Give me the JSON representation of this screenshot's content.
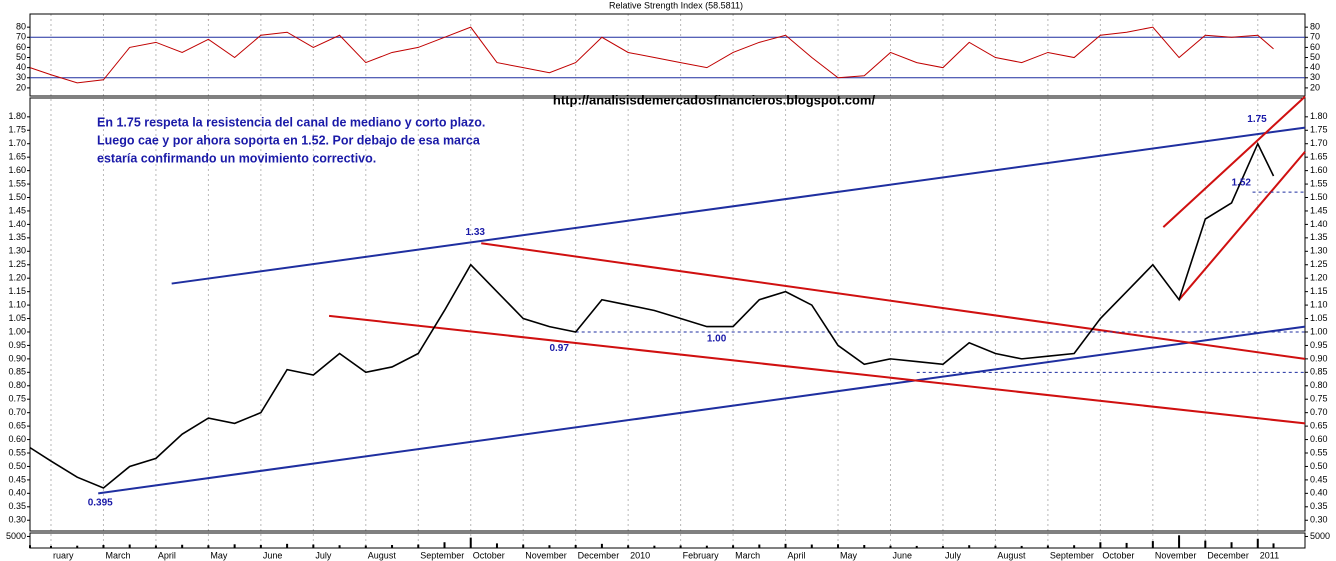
{
  "url": "http://analisisdemercadosfinancieros.blogspot.com/",
  "chart_data": [
    {
      "type": "line",
      "title": "Relative Strength Index (58.5811)",
      "color": "#c00000",
      "x": [
        0.6,
        1.0,
        1.5,
        2.0,
        2.5,
        3.0,
        3.5,
        4.0,
        4.5,
        5.0,
        5.5,
        6.0,
        6.5,
        7.0,
        7.5,
        8.0,
        8.5,
        9.0,
        9.5,
        10.0,
        10.5,
        11.0,
        11.5,
        12.0,
        12.5,
        13.0,
        13.5,
        14.0,
        14.5,
        15.0,
        15.5,
        16.0,
        16.5,
        17.0,
        17.5,
        18.0,
        18.5,
        19.0,
        19.5,
        20.0,
        20.5,
        21.0,
        21.5,
        22.0,
        22.5,
        23.0,
        23.5,
        24.0,
        24.3
      ],
      "values": [
        40,
        33,
        25,
        28,
        60,
        65,
        55,
        68,
        50,
        72,
        75,
        60,
        72,
        45,
        55,
        60,
        70,
        80,
        45,
        40,
        35,
        45,
        70,
        55,
        50,
        45,
        40,
        55,
        65,
        72,
        50,
        30,
        32,
        55,
        45,
        40,
        65,
        50,
        45,
        55,
        50,
        72,
        75,
        80,
        50,
        72,
        70,
        72,
        58.5811
      ],
      "xlim": [
        0.6,
        24.9
      ],
      "ylim": [
        12,
        93
      ],
      "yticks": [
        20,
        30,
        40,
        50,
        60,
        70,
        80
      ],
      "hlines": [
        70,
        30
      ],
      "hline_color": "#1f2f9f"
    },
    {
      "type": "line",
      "color": "#000000",
      "notes": [
        "En 1.75 respeta la resistencia del canal de mediano y corto plazo.",
        "Luego cae y por ahora soporta en 1.52. Por debajo de esa marca",
        "estaría confirmando un movimiento correctivo."
      ],
      "x": [
        0.6,
        1.0,
        1.5,
        2.0,
        2.5,
        3.0,
        3.5,
        4.0,
        4.5,
        5.0,
        5.5,
        6.0,
        6.5,
        7.0,
        7.5,
        8.0,
        8.5,
        9.0,
        9.5,
        10.0,
        10.5,
        11.0,
        11.5,
        12.0,
        12.5,
        13.0,
        13.5,
        14.0,
        14.5,
        15.0,
        15.5,
        16.0,
        16.5,
        17.0,
        17.5,
        18.0,
        18.5,
        19.0,
        19.5,
        20.0,
        20.5,
        21.0,
        21.5,
        22.0,
        22.5,
        23.0,
        23.5,
        24.0,
        24.3
      ],
      "values": [
        0.57,
        0.52,
        0.46,
        0.42,
        0.5,
        0.53,
        0.62,
        0.68,
        0.66,
        0.7,
        0.86,
        0.84,
        0.92,
        0.85,
        0.87,
        0.92,
        1.08,
        1.25,
        1.15,
        1.05,
        1.02,
        1.0,
        1.12,
        1.1,
        1.08,
        1.05,
        1.02,
        1.02,
        1.12,
        1.15,
        1.1,
        0.95,
        0.88,
        0.9,
        0.89,
        0.88,
        0.96,
        0.92,
        0.9,
        0.91,
        0.92,
        1.05,
        1.15,
        1.25,
        1.12,
        1.42,
        1.48,
        1.7,
        1.58
      ],
      "xlim": [
        0.6,
        24.9
      ],
      "ylim": [
        0.26,
        1.87
      ],
      "yticks": [
        {
          "value": 0.3,
          "label": "0.30"
        },
        {
          "value": 0.35,
          "label": "0.35"
        },
        {
          "value": 0.4,
          "label": "0.40"
        },
        {
          "value": 0.45,
          "label": "0.45"
        },
        {
          "value": 0.5,
          "label": "0.50"
        },
        {
          "value": 0.55,
          "label": "0.55"
        },
        {
          "value": 0.6,
          "label": "0.60"
        },
        {
          "value": 0.65,
          "label": "0.65"
        },
        {
          "value": 0.7,
          "label": "0.70"
        },
        {
          "value": 0.75,
          "label": "0.75"
        },
        {
          "value": 0.8,
          "label": "0.80"
        },
        {
          "value": 0.85,
          "label": "0.85"
        },
        {
          "value": 0.9,
          "label": "0.90"
        },
        {
          "value": 0.95,
          "label": "0.95"
        },
        {
          "value": 1.0,
          "label": "1.00"
        },
        {
          "value": 1.05,
          "label": "1.05"
        },
        {
          "value": 1.1,
          "label": "1.10"
        },
        {
          "value": 1.15,
          "label": "1.15"
        },
        {
          "value": 1.2,
          "label": "1.20"
        },
        {
          "value": 1.25,
          "label": "1.25"
        },
        {
          "value": 1.3,
          "label": "1.30"
        },
        {
          "value": 1.35,
          "label": "1.35"
        },
        {
          "value": 1.4,
          "label": "1.40"
        },
        {
          "value": 1.45,
          "label": "1.45"
        },
        {
          "value": 1.5,
          "label": "1.50"
        },
        {
          "value": 1.55,
          "label": "1.55"
        },
        {
          "value": 1.6,
          "label": "1.60"
        },
        {
          "value": 1.65,
          "label": "1.65"
        },
        {
          "value": 1.7,
          "label": "1.70"
        },
        {
          "value": 1.75,
          "label": "1.75"
        },
        {
          "value": 1.8,
          "label": "1.80"
        }
      ],
      "lines": [
        {
          "color": "#1f2fa0",
          "dashed": false,
          "points": [
            [
              3.3,
              1.18
            ],
            [
              24.9,
              1.76
            ]
          ]
        },
        {
          "color": "#1f2fa0",
          "dashed": false,
          "points": [
            [
              1.9,
              0.4
            ],
            [
              24.9,
              1.02
            ]
          ]
        },
        {
          "color": "#d01010",
          "dashed": false,
          "points": [
            [
              9.2,
              1.33
            ],
            [
              24.9,
              0.9
            ]
          ]
        },
        {
          "color": "#d01010",
          "dashed": false,
          "points": [
            [
              6.3,
              1.06
            ],
            [
              24.9,
              0.66
            ]
          ]
        },
        {
          "color": "#d01010",
          "dashed": false,
          "points": [
            [
              22.5,
              1.12
            ],
            [
              24.9,
              1.67
            ]
          ]
        },
        {
          "color": "#d01010",
          "dashed": false,
          "points": [
            [
              22.2,
              1.39
            ],
            [
              24.9,
              1.875
            ]
          ]
        },
        {
          "color": "#1f2fa0",
          "dashed": true,
          "points": [
            [
              11.0,
              1.0
            ],
            [
              24.9,
              1.0
            ]
          ]
        },
        {
          "color": "#1f2fa0",
          "dashed": true,
          "points": [
            [
              23.9,
              1.52
            ],
            [
              24.9,
              1.52
            ]
          ]
        },
        {
          "color": "#1f2fa0",
          "dashed": true,
          "points": [
            [
              17.5,
              0.85
            ],
            [
              24.9,
              0.85
            ]
          ]
        }
      ],
      "annotations": [
        {
          "text": "1.33",
          "x": 8.9,
          "y": 1.37
        },
        {
          "text": "0.97",
          "x": 10.5,
          "y": 0.94
        },
        {
          "text": "1.00",
          "x": 13.5,
          "y": 0.975
        },
        {
          "text": "0.395",
          "x": 1.7,
          "y": 0.365
        },
        {
          "text": "1.75",
          "x": 23.8,
          "y": 1.79
        },
        {
          "text": "1.52",
          "x": 23.5,
          "y": 1.555
        }
      ]
    },
    {
      "type": "bar",
      "color": "#000000",
      "x": [
        0.6,
        1.0,
        1.5,
        2.0,
        2.5,
        3.0,
        3.5,
        4.0,
        4.5,
        5.0,
        5.5,
        6.0,
        6.5,
        7.0,
        7.5,
        8.0,
        8.5,
        9.0,
        9.5,
        10.0,
        10.5,
        11.0,
        11.5,
        12.0,
        12.5,
        13.0,
        13.5,
        14.0,
        14.5,
        15.0,
        15.5,
        16.0,
        16.5,
        17.0,
        17.5,
        18.0,
        18.5,
        19.0,
        19.5,
        20.0,
        20.5,
        21.0,
        21.5,
        22.0,
        22.5,
        23.0,
        23.5,
        24.0,
        24.3
      ],
      "values": [
        1200,
        900,
        1000,
        1300,
        1500,
        1100,
        1400,
        1200,
        1600,
        1300,
        1800,
        1500,
        1200,
        1100,
        1300,
        1500,
        2500,
        4500,
        2000,
        1500,
        1200,
        1300,
        1800,
        1200,
        1000,
        1100,
        1000,
        1200,
        1500,
        1800,
        1500,
        1600,
        1300,
        1000,
        900,
        800,
        1200,
        1000,
        900,
        1100,
        1200,
        2500,
        2200,
        3000,
        5500,
        3200,
        2500,
        4000,
        2000
      ],
      "xlim": [
        0.6,
        24.9
      ],
      "ylim": [
        0,
        6500
      ],
      "yticks": [
        5000
      ],
      "xticks": [
        {
          "value": 1,
          "label": "ruary"
        },
        {
          "value": 2,
          "label": "March"
        },
        {
          "value": 3,
          "label": "April"
        },
        {
          "value": 4,
          "label": "May"
        },
        {
          "value": 5,
          "label": "June"
        },
        {
          "value": 6,
          "label": "July"
        },
        {
          "value": 7,
          "label": "August"
        },
        {
          "value": 8,
          "label": "September"
        },
        {
          "value": 9,
          "label": "October"
        },
        {
          "value": 10,
          "label": "November"
        },
        {
          "value": 11,
          "label": "December"
        },
        {
          "value": 12,
          "label": "2010"
        },
        {
          "value": 13,
          "label": "February"
        },
        {
          "value": 14,
          "label": "March"
        },
        {
          "value": 15,
          "label": "April"
        },
        {
          "value": 16,
          "label": "May"
        },
        {
          "value": 17,
          "label": "June"
        },
        {
          "value": 18,
          "label": "July"
        },
        {
          "value": 19,
          "label": "August"
        },
        {
          "value": 20,
          "label": "September"
        },
        {
          "value": 21,
          "label": "October"
        },
        {
          "value": 22,
          "label": "November"
        },
        {
          "value": 23,
          "label": "December"
        },
        {
          "value": 24,
          "label": "2011"
        }
      ]
    }
  ]
}
